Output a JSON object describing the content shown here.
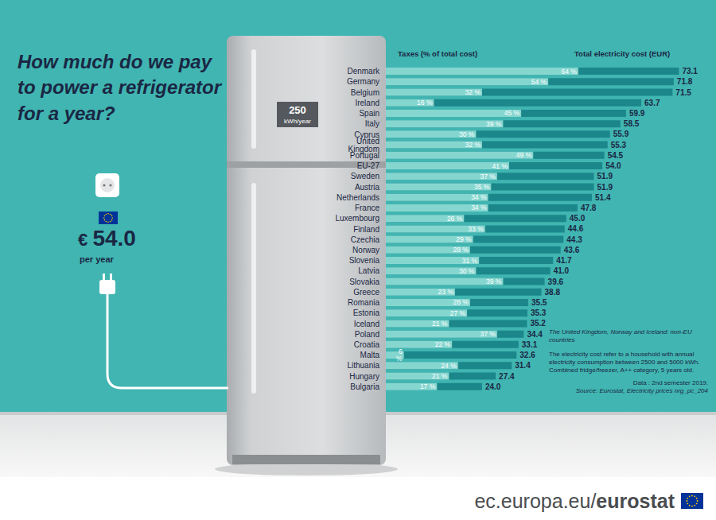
{
  "chart_data": {
    "type": "bar",
    "title": "How much do we pay to power a refrigerator for a year?",
    "orientation": "horizontal",
    "categories": [
      "Denmark",
      "Germany",
      "Belgium",
      "Ireland",
      "Spain",
      "Italy",
      "Cyprus",
      "United Kingdom",
      "Portugal",
      "EU-27",
      "Sweden",
      "Austria",
      "Netherlands",
      "France",
      "Luxembourg",
      "Finland",
      "Czechia",
      "Norway",
      "Slovenia",
      "Latvia",
      "Slovakia",
      "Greece",
      "Romania",
      "Estonia",
      "Iceland",
      "Poland",
      "Croatia",
      "Malta",
      "Lithuania",
      "Hungary",
      "Bulgaria"
    ],
    "series": [
      {
        "name": "Total electricity cost (EUR)",
        "color": "#1b878b",
        "values": [
          73.1,
          71.8,
          71.5,
          63.7,
          59.9,
          58.5,
          55.9,
          55.3,
          54.5,
          54.0,
          51.9,
          51.9,
          51.4,
          47.8,
          45.0,
          44.6,
          44.3,
          43.6,
          41.7,
          41.0,
          39.6,
          38.8,
          35.5,
          35.3,
          35.2,
          34.4,
          33.1,
          32.6,
          31.4,
          27.4,
          24.0
        ],
        "value_labels": [
          "73.1",
          "71.8",
          "71.5",
          "63.7",
          "59.9",
          "58.5",
          "55.9",
          "55.3",
          "54.5",
          "54.0",
          "51.9",
          "51.9",
          "51.4",
          "47.8",
          "45.0",
          "44.6",
          "44.3",
          "43.6",
          "41.7",
          "41.0",
          "39.6",
          "38.8",
          "35.5",
          "35.3",
          "35.2",
          "34.4",
          "33.1",
          "32.6",
          "31.4",
          "27.4",
          "24.0"
        ]
      },
      {
        "name": "Taxes (% of total cost)",
        "color": "#86d6d0",
        "axis": "y2",
        "values": [
          64,
          54,
          32,
          16,
          45,
          39,
          30,
          32,
          49,
          41,
          37,
          35,
          34,
          34,
          26,
          33,
          29,
          28,
          31,
          30,
          39,
          23,
          28,
          27,
          21,
          37,
          22,
          6,
          24,
          21,
          17
        ],
        "value_labels": [
          "64 %",
          "54 %",
          "32 %",
          "16 %",
          "45 %",
          "39 %",
          "30 %",
          "32 %",
          "49 %",
          "41 %",
          "37 %",
          "35 %",
          "34 %",
          "34 %",
          "26 %",
          "33 %",
          "29 %",
          "28 %",
          "31 %",
          "30 %",
          "39 %",
          "23 %",
          "28 %",
          "27 %",
          "21 %",
          "37 %",
          "22 %",
          "6 %",
          "24 %",
          "21 %",
          "17 %"
        ]
      }
    ],
    "ylim": [
      0,
      75
    ],
    "y2lim": [
      0,
      100
    ],
    "grid": false,
    "data_labels": true,
    "tick_labels": "y"
  },
  "fridge": {
    "consumption": "250",
    "unit": "kWh/year"
  },
  "annual_cost": {
    "currency": "€",
    "amount": "54.0",
    "unit": "per year"
  },
  "notes": [
    "The United Kingdom, Norway and Iceland: non-EU countries",
    "The electricity cost refer to a household with annual electricity consumption between 2500 and 5000 kWh. Combined fridge/freezer, A++ category, 5 years old.",
    "Data : 2nd semester 2019.",
    "Source: Eurostat, Electricity prices nrg_pc_204"
  ],
  "footer": "ec.europa.eu/eurostat"
}
